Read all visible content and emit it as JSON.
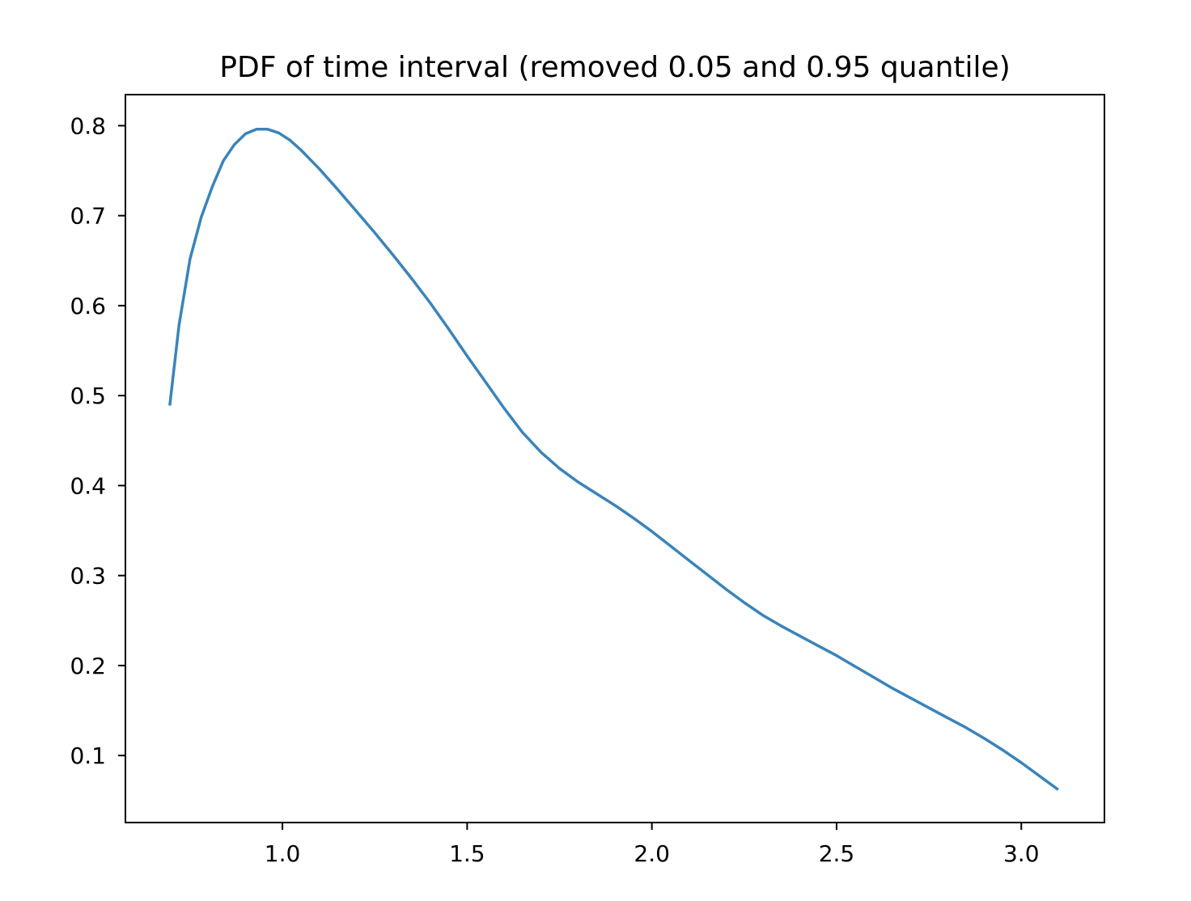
{
  "chart_data": {
    "type": "line",
    "title": "PDF of time interval (removed 0.05 and 0.95 quantile)",
    "xlabel": "",
    "ylabel": "",
    "xlim": [
      0.575,
      3.225
    ],
    "ylim": [
      0.0255,
      0.8345
    ],
    "grid": false,
    "legend": "none",
    "x_ticks": [
      {
        "value": 1.0,
        "label": "1.0"
      },
      {
        "value": 1.5,
        "label": "1.5"
      },
      {
        "value": 2.0,
        "label": "2.0"
      },
      {
        "value": 2.5,
        "label": "2.5"
      },
      {
        "value": 3.0,
        "label": "3.0"
      }
    ],
    "y_ticks": [
      {
        "value": 0.1,
        "label": "0.1"
      },
      {
        "value": 0.2,
        "label": "0.2"
      },
      {
        "value": 0.3,
        "label": "0.3"
      },
      {
        "value": 0.4,
        "label": "0.4"
      },
      {
        "value": 0.5,
        "label": "0.5"
      },
      {
        "value": 0.6,
        "label": "0.6"
      },
      {
        "value": 0.7,
        "label": "0.7"
      },
      {
        "value": 0.8,
        "label": "0.8"
      }
    ],
    "series": [
      {
        "color": "#3a84ba",
        "x": [
          0.695,
          0.72,
          0.75,
          0.78,
          0.81,
          0.84,
          0.87,
          0.9,
          0.93,
          0.96,
          0.99,
          1.02,
          1.05,
          1.1,
          1.15,
          1.2,
          1.25,
          1.3,
          1.35,
          1.4,
          1.45,
          1.5,
          1.55,
          1.6,
          1.65,
          1.7,
          1.75,
          1.8,
          1.85,
          1.9,
          1.95,
          2.0,
          2.05,
          2.1,
          2.15,
          2.2,
          2.25,
          2.3,
          2.35,
          2.4,
          2.45,
          2.5,
          2.55,
          2.6,
          2.65,
          2.7,
          2.75,
          2.8,
          2.85,
          2.9,
          2.95,
          3.0,
          3.05,
          3.1
        ],
        "y": [
          0.489,
          0.578,
          0.652,
          0.698,
          0.732,
          0.761,
          0.779,
          0.791,
          0.796,
          0.796,
          0.792,
          0.784,
          0.773,
          0.752,
          0.729,
          0.705,
          0.681,
          0.656,
          0.63,
          0.603,
          0.574,
          0.544,
          0.515,
          0.486,
          0.459,
          0.437,
          0.419,
          0.404,
          0.391,
          0.378,
          0.364,
          0.349,
          0.333,
          0.317,
          0.301,
          0.285,
          0.27,
          0.256,
          0.244,
          0.233,
          0.222,
          0.211,
          0.199,
          0.187,
          0.175,
          0.164,
          0.153,
          0.142,
          0.131,
          0.119,
          0.106,
          0.092,
          0.077,
          0.062
        ]
      }
    ]
  }
}
